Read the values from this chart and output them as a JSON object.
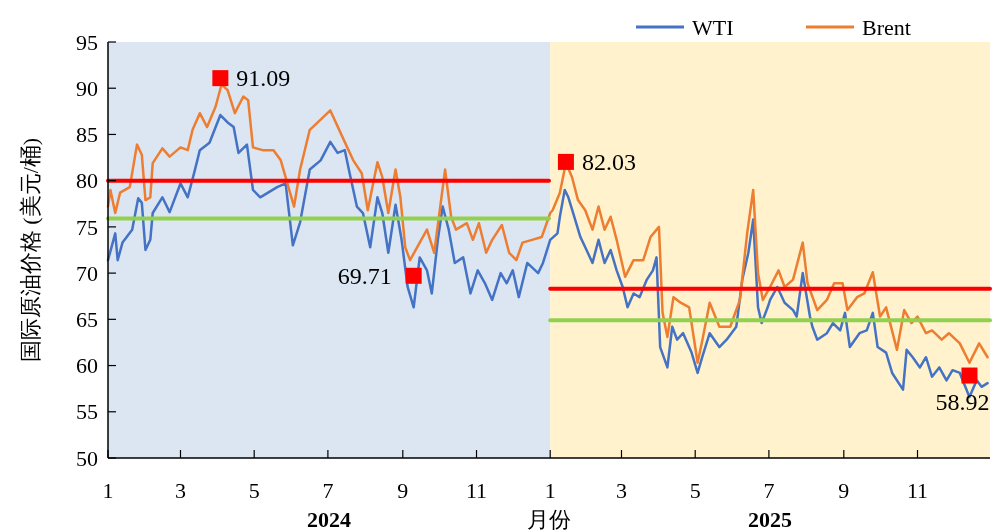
{
  "chart_data": {
    "type": "line",
    "ylabel": "国际原油价格 (美元/桶)",
    "xlabel": "月份",
    "legend": "top right",
    "grid": false,
    "line_style": "solid",
    "xlim": [
      "2024-01-01",
      "2025-12-31"
    ],
    "xticks": [
      {
        "value": "2024-01-01",
        "label": "1"
      },
      {
        "value": "2024-03-01",
        "label": "3"
      },
      {
        "value": "2024-05-01",
        "label": "5"
      },
      {
        "value": "2024-07-01",
        "label": "7"
      },
      {
        "value": "2024-09-01",
        "label": "9"
      },
      {
        "value": "2024-11-01",
        "label": "11"
      },
      {
        "value": "2025-01-01",
        "label": "1"
      },
      {
        "value": "2025-03-01",
        "label": "3"
      },
      {
        "value": "2025-05-01",
        "label": "5"
      },
      {
        "value": "2025-07-01",
        "label": "7"
      },
      {
        "value": "2025-09-01",
        "label": "9"
      },
      {
        "value": "2025-11-01",
        "label": "11"
      }
    ],
    "ylim": [
      50,
      95
    ],
    "yticks": [
      50,
      55,
      60,
      65,
      70,
      75,
      80,
      85,
      90,
      95
    ],
    "bands": [
      {
        "axis": "x",
        "from": "2024-01-01",
        "to": "2025-01-01",
        "label": "2024",
        "color": "#dce6f2"
      },
      {
        "axis": "x",
        "from": "2025-01-01",
        "to": "2025-12-31",
        "label": "2025",
        "color": "#fff2cc"
      }
    ],
    "series": [
      {
        "name": "WTI",
        "color": "#4472c4",
        "x": [
          "2024-01-01",
          "2024-01-07",
          "2024-01-09",
          "2024-01-13",
          "2024-01-21",
          "2024-01-26",
          "2024-01-29",
          "2024-02-01",
          "2024-02-05",
          "2024-02-07",
          "2024-02-15",
          "2024-02-21",
          "2024-03-01",
          "2024-03-07",
          "2024-03-13",
          "2024-03-17",
          "2024-03-25",
          "2024-04-03",
          "2024-04-09",
          "2024-04-14",
          "2024-04-18",
          "2024-04-25",
          "2024-04-30",
          "2024-05-06",
          "2024-05-20",
          "2024-05-27",
          "2024-06-02",
          "2024-06-08",
          "2024-06-16",
          "2024-06-25",
          "2024-07-03",
          "2024-07-09",
          "2024-07-15",
          "2024-07-19",
          "2024-07-25",
          "2024-07-30",
          "2024-08-05",
          "2024-08-11",
          "2024-08-15",
          "2024-08-20",
          "2024-08-26",
          "2024-08-31",
          "2024-09-05",
          "2024-09-10",
          "2024-09-15",
          "2024-09-21",
          "2024-09-25",
          "2024-09-30",
          "2024-10-04",
          "2024-10-09",
          "2024-10-14",
          "2024-10-21",
          "2024-10-27",
          "2024-11-02",
          "2024-11-08",
          "2024-11-14",
          "2024-11-21",
          "2024-11-26",
          "2024-12-01",
          "2024-12-06",
          "2024-12-13",
          "2024-12-22",
          "2024-12-26",
          "2025-01-01",
          "2025-01-07",
          "2025-01-09",
          "2025-01-13",
          "2025-01-16",
          "2025-01-20",
          "2025-01-26",
          "2025-01-30",
          "2025-02-05",
          "2025-02-10",
          "2025-02-15",
          "2025-02-20",
          "2025-02-25",
          "2025-03-02",
          "2025-03-06",
          "2025-03-11",
          "2025-03-16",
          "2025-03-22",
          "2025-03-27",
          "2025-03-30",
          "2025-04-02",
          "2025-04-08",
          "2025-04-12",
          "2025-04-16",
          "2025-04-21",
          "2025-04-28",
          "2025-05-03",
          "2025-05-07",
          "2025-05-13",
          "2025-05-21",
          "2025-05-27",
          "2025-06-04",
          "2025-06-09",
          "2025-06-14",
          "2025-06-18",
          "2025-06-22",
          "2025-06-25",
          "2025-06-30",
          "2025-07-02",
          "2025-07-08",
          "2025-07-14",
          "2025-07-21",
          "2025-07-24",
          "2025-07-29",
          "2025-08-04",
          "2025-08-06",
          "2025-08-10",
          "2025-08-18",
          "2025-08-23",
          "2025-08-29",
          "2025-09-02",
          "2025-09-06",
          "2025-09-14",
          "2025-09-20",
          "2025-09-25",
          "2025-09-29",
          "2025-10-06",
          "2025-10-11",
          "2025-10-20",
          "2025-10-23",
          "2025-10-28",
          "2025-11-03",
          "2025-11-08",
          "2025-11-13",
          "2025-11-19",
          "2025-11-25",
          "2025-11-30",
          "2025-12-06",
          "2025-12-14",
          "2025-12-20",
          "2025-12-24",
          "2025-12-29"
        ],
        "values": [
          71.4,
          74.3,
          71.4,
          73.3,
          74.7,
          78.1,
          77.6,
          72.5,
          73.6,
          76.5,
          78.2,
          76.6,
          79.7,
          78.2,
          81.2,
          83.3,
          84.1,
          87.1,
          86.3,
          85.8,
          83.0,
          83.9,
          79.0,
          78.2,
          79.3,
          79.7,
          73.0,
          75.5,
          81.2,
          82.2,
          84.2,
          83.0,
          83.3,
          80.8,
          77.2,
          76.5,
          72.8,
          78.2,
          76.5,
          72.2,
          77.4,
          73.6,
          68.5,
          66.3,
          71.7,
          70.3,
          67.8,
          73.6,
          77.2,
          74.7,
          71.1,
          71.7,
          67.8,
          70.3,
          68.9,
          67.1,
          70.0,
          68.9,
          70.3,
          67.4,
          71.1,
          70.0,
          71.1,
          73.6,
          74.3,
          76.1,
          79.0,
          78.2,
          76.5,
          73.9,
          72.8,
          71.1,
          73.6,
          71.1,
          72.5,
          70.3,
          68.5,
          66.3,
          67.8,
          67.4,
          69.3,
          70.3,
          71.7,
          62.0,
          59.8,
          64.2,
          62.8,
          63.5,
          61.4,
          59.2,
          61.0,
          63.5,
          62.0,
          62.8,
          64.2,
          69.3,
          72.2,
          75.8,
          66.3,
          64.6,
          66.3,
          67.1,
          68.5,
          66.8,
          66.0,
          65.3,
          70.0,
          65.3,
          64.2,
          62.8,
          63.5,
          64.6,
          63.8,
          65.7,
          62.0,
          63.5,
          63.8,
          65.7,
          62.0,
          61.4,
          59.2,
          57.4,
          61.7,
          60.9,
          59.8,
          60.9,
          58.8,
          59.8,
          58.4,
          59.5,
          59.2,
          56.6,
          58.4,
          57.7,
          58.1
        ]
      },
      {
        "name": "Brent",
        "color": "#ed7d31",
        "x": [
          "2024-01-01",
          "2024-01-03",
          "2024-01-07",
          "2024-01-11",
          "2024-01-19",
          "2024-01-25",
          "2024-01-29",
          "2024-02-01",
          "2024-02-05",
          "2024-02-07",
          "2024-02-15",
          "2024-02-21",
          "2024-03-01",
          "2024-03-07",
          "2024-03-11",
          "2024-03-17",
          "2024-03-23",
          "2024-03-30",
          "2024-04-04",
          "2024-04-09",
          "2024-04-15",
          "2024-04-22",
          "2024-04-26",
          "2024-04-30",
          "2024-05-08",
          "2024-05-17",
          "2024-05-23",
          "2024-06-03",
          "2024-06-08",
          "2024-06-16",
          "2024-06-25",
          "2024-07-03",
          "2024-07-17",
          "2024-07-22",
          "2024-07-29",
          "2024-08-03",
          "2024-08-11",
          "2024-08-15",
          "2024-08-20",
          "2024-08-26",
          "2024-08-30",
          "2024-09-03",
          "2024-09-07",
          "2024-09-15",
          "2024-09-21",
          "2024-09-27",
          "2024-10-06",
          "2024-10-11",
          "2024-10-15",
          "2024-10-24",
          "2024-10-29",
          "2024-11-03",
          "2024-11-09",
          "2024-11-14",
          "2024-11-22",
          "2024-11-28",
          "2024-12-04",
          "2024-12-09",
          "2024-12-17",
          "2024-12-25",
          "2025-01-01",
          "2025-01-03",
          "2025-01-09",
          "2025-01-14",
          "2025-01-19",
          "2025-01-24",
          "2025-01-30",
          "2025-02-05",
          "2025-02-10",
          "2025-02-15",
          "2025-02-20",
          "2025-02-25",
          "2025-03-04",
          "2025-03-11",
          "2025-03-19",
          "2025-03-25",
          "2025-04-01",
          "2025-04-04",
          "2025-04-08",
          "2025-04-13",
          "2025-04-19",
          "2025-04-26",
          "2025-05-03",
          "2025-05-07",
          "2025-05-13",
          "2025-05-21",
          "2025-05-30",
          "2025-06-07",
          "2025-06-13",
          "2025-06-18",
          "2025-06-22",
          "2025-06-26",
          "2025-07-02",
          "2025-07-09",
          "2025-07-14",
          "2025-07-21",
          "2025-07-29",
          "2025-08-02",
          "2025-08-10",
          "2025-08-18",
          "2025-08-24",
          "2025-08-31",
          "2025-09-04",
          "2025-09-12",
          "2025-09-18",
          "2025-09-25",
          "2025-10-01",
          "2025-10-06",
          "2025-10-15",
          "2025-10-21",
          "2025-10-27",
          "2025-11-01",
          "2025-11-08",
          "2025-11-13",
          "2025-11-21",
          "2025-11-27",
          "2025-12-06",
          "2025-12-14",
          "2025-12-22",
          "2025-12-29"
        ],
        "values": [
          77.2,
          79.0,
          76.5,
          78.7,
          79.3,
          83.9,
          82.8,
          77.9,
          78.2,
          81.9,
          83.5,
          82.6,
          83.6,
          83.3,
          85.5,
          87.3,
          85.8,
          88.0,
          90.4,
          89.8,
          87.3,
          89.1,
          88.7,
          83.6,
          83.3,
          83.3,
          82.2,
          77.2,
          81.2,
          85.5,
          86.6,
          87.6,
          83.6,
          82.2,
          80.8,
          76.8,
          82.0,
          80.4,
          76.5,
          81.2,
          78.2,
          72.8,
          71.4,
          73.3,
          74.7,
          72.2,
          81.2,
          76.1,
          74.7,
          75.4,
          73.6,
          75.4,
          72.2,
          73.6,
          75.2,
          72.2,
          71.4,
          73.3,
          73.6,
          73.9,
          76.5,
          76.8,
          78.7,
          81.9,
          80.4,
          77.9,
          76.8,
          74.7,
          77.2,
          74.7,
          76.1,
          73.6,
          69.6,
          71.4,
          71.4,
          73.9,
          75.0,
          65.7,
          63.1,
          67.4,
          66.8,
          66.3,
          60.3,
          62.8,
          66.8,
          64.2,
          64.2,
          67.1,
          74.3,
          79.0,
          70.0,
          67.1,
          68.5,
          70.3,
          68.5,
          69.3,
          73.3,
          68.9,
          66.0,
          67.1,
          68.9,
          68.9,
          66.0,
          67.4,
          67.8,
          70.1,
          65.3,
          66.3,
          61.7,
          66.0,
          64.6,
          65.3,
          63.5,
          63.8,
          62.8,
          63.5,
          62.4,
          60.3,
          62.4,
          60.9
        ]
      },
      {
        "type": "line",
        "color": "#ff0000",
        "x": [
          "2024-01-01",
          "2024-12-31"
        ],
        "values": [
          80.0,
          80.0
        ]
      },
      {
        "type": "line",
        "color": "#92d050",
        "x": [
          "2024-01-01",
          "2024-12-31"
        ],
        "values": [
          75.9,
          75.9
        ]
      },
      {
        "type": "line",
        "color": "#ff0000",
        "x": [
          "2025-01-01",
          "2025-12-31"
        ],
        "values": [
          68.3,
          68.3
        ]
      },
      {
        "type": "line",
        "color": "#92d050",
        "x": [
          "2025-01-01",
          "2025-12-31"
        ],
        "values": [
          64.9,
          64.9
        ]
      },
      {
        "type": "scatter",
        "marker": "square",
        "color": "#ff0000",
        "x": [
          "2024-04-03",
          "2024-09-10",
          "2025-01-14",
          "2025-12-14"
        ],
        "values": [
          91.09,
          69.71,
          82.03,
          58.92
        ]
      }
    ],
    "annotations": [
      {
        "text": "91.09",
        "x": "2024-04-03",
        "y": 91.09
      },
      {
        "text": "69.71",
        "x": "2024-09-10",
        "y": 69.71
      },
      {
        "text": "82.03",
        "x": "2025-01-14",
        "y": 82.03
      },
      {
        "text": "58.92",
        "x": "2025-12-14",
        "y": 58.92
      }
    ]
  }
}
